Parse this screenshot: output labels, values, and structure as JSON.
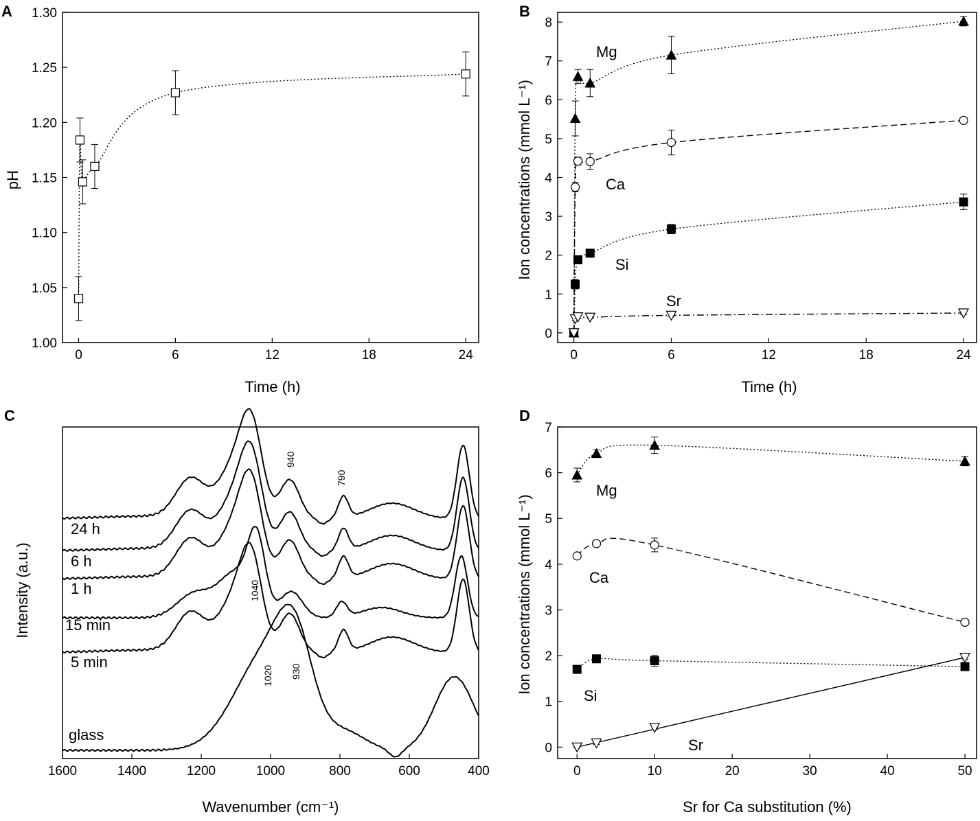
{
  "chart_data": [
    {
      "panel": "A",
      "type": "scatter",
      "xlabel": "Time (h)",
      "ylabel": "pH",
      "xlim": [
        -1,
        24.8
      ],
      "ylim": [
        1.0,
        1.3
      ],
      "xticks": [
        0,
        6,
        12,
        18,
        24
      ],
      "yticks": [
        "1.00",
        "1.05",
        "1.10",
        "1.15",
        "1.20",
        "1.25",
        "1.30"
      ],
      "series": [
        {
          "name": "pH",
          "marker": "square-open",
          "line": "dotted",
          "points": [
            {
              "x": 0.0,
              "y": 1.04,
              "err": 0.02
            },
            {
              "x": 0.083,
              "y": 1.184,
              "err": 0.02
            },
            {
              "x": 0.25,
              "y": 1.146,
              "err": 0.02
            },
            {
              "x": 1.0,
              "y": 1.16,
              "err": 0.02
            },
            {
              "x": 6.0,
              "y": 1.227,
              "err": 0.02
            },
            {
              "x": 24.0,
              "y": 1.244,
              "err": 0.02
            }
          ]
        }
      ]
    },
    {
      "panel": "B",
      "type": "scatter",
      "xlabel": "Time (h)",
      "ylabel": "Ion concentrations (mmol L⁻¹)",
      "xlim": [
        -1,
        24.8
      ],
      "ylim": [
        -0.25,
        8.25
      ],
      "xticks": [
        0,
        6,
        12,
        18,
        24
      ],
      "yticks": [
        0,
        1,
        2,
        3,
        4,
        5,
        6,
        7,
        8
      ],
      "annotations": [
        "Mg",
        "Ca",
        "Si",
        "Sr"
      ],
      "series": [
        {
          "name": "Mg",
          "marker": "triangle-filled",
          "line": "dotted",
          "points": [
            {
              "x": 0,
              "y": 0,
              "err": 0
            },
            {
              "x": 0.083,
              "y": 5.52,
              "err": 0.45
            },
            {
              "x": 0.25,
              "y": 6.6,
              "err": 0.18
            },
            {
              "x": 1.0,
              "y": 6.43,
              "err": 0.35
            },
            {
              "x": 6.0,
              "y": 7.15,
              "err": 0.48
            },
            {
              "x": 24.0,
              "y": 8.02,
              "err": 0.12
            }
          ]
        },
        {
          "name": "Ca",
          "marker": "circle-open",
          "line": "dashed",
          "points": [
            {
              "x": 0,
              "y": 0,
              "err": 0
            },
            {
              "x": 0.083,
              "y": 3.75,
              "err": 0.12
            },
            {
              "x": 0.25,
              "y": 4.42,
              "err": 0.1
            },
            {
              "x": 1.0,
              "y": 4.41,
              "err": 0.2
            },
            {
              "x": 6.0,
              "y": 4.9,
              "err": 0.32
            },
            {
              "x": 24.0,
              "y": 5.47,
              "err": 0.05
            }
          ]
        },
        {
          "name": "Si",
          "marker": "square-filled",
          "line": "dotted",
          "points": [
            {
              "x": 0,
              "y": 0,
              "err": 0
            },
            {
              "x": 0.083,
              "y": 1.25,
              "err": 0.12
            },
            {
              "x": 0.25,
              "y": 1.88,
              "err": 0.1
            },
            {
              "x": 1.0,
              "y": 2.05,
              "err": 0.05
            },
            {
              "x": 6.0,
              "y": 2.67,
              "err": 0.12
            },
            {
              "x": 24.0,
              "y": 3.37,
              "err": 0.2
            }
          ]
        },
        {
          "name": "Sr",
          "marker": "triangle-down-open",
          "line": "dashdot",
          "points": [
            {
              "x": 0,
              "y": 0,
              "err": 0
            },
            {
              "x": 0.083,
              "y": 0.36,
              "err": 0.04
            },
            {
              "x": 0.25,
              "y": 0.41,
              "err": 0.04
            },
            {
              "x": 1.0,
              "y": 0.4,
              "err": 0.04
            },
            {
              "x": 6.0,
              "y": 0.45,
              "err": 0.04
            },
            {
              "x": 24.0,
              "y": 0.51,
              "err": 0.04
            }
          ]
        }
      ]
    },
    {
      "panel": "C",
      "type": "line",
      "xlabel": "Wavenumber (cm⁻¹)",
      "ylabel": "Intensity (a.u.)",
      "xlim": [
        1600,
        400
      ],
      "xticks": [
        1600,
        1400,
        1200,
        1000,
        800,
        600,
        400
      ],
      "series_labels": [
        "24 h",
        "6 h",
        "1 h",
        "15 min",
        "5 min",
        "glass"
      ],
      "peak_labels": [
        "940",
        "790",
        "1040",
        "1020",
        "930"
      ]
    },
    {
      "panel": "D",
      "type": "scatter",
      "xlabel": "Sr for Ca substitution (%)",
      "ylabel": "Ion concentrations (mmol L⁻¹)",
      "xlim": [
        -2.5,
        51.5
      ],
      "ylim": [
        -0.25,
        7.0
      ],
      "xticks": [
        0,
        10,
        20,
        30,
        40,
        50
      ],
      "yticks": [
        0,
        1,
        2,
        3,
        4,
        5,
        6,
        7
      ],
      "annotations": [
        "Mg",
        "Ca",
        "Si",
        "Sr"
      ],
      "series": [
        {
          "name": "Mg",
          "marker": "triangle-filled",
          "line": "dotted",
          "points": [
            {
              "x": 0,
              "y": 5.95,
              "err": 0.15
            },
            {
              "x": 2.5,
              "y": 6.42,
              "err": 0.08
            },
            {
              "x": 10,
              "y": 6.6,
              "err": 0.18
            },
            {
              "x": 50,
              "y": 6.25,
              "err": 0.1
            }
          ]
        },
        {
          "name": "Ca",
          "marker": "circle-open",
          "line": "dashed",
          "points": [
            {
              "x": 0,
              "y": 4.18,
              "err": 0.05
            },
            {
              "x": 2.5,
              "y": 4.45,
              "err": 0.05
            },
            {
              "x": 10,
              "y": 4.42,
              "err": 0.15
            },
            {
              "x": 50,
              "y": 2.73,
              "err": 0.05
            }
          ]
        },
        {
          "name": "Si",
          "marker": "square-filled",
          "line": "dotted",
          "points": [
            {
              "x": 0,
              "y": 1.7,
              "err": 0.03
            },
            {
              "x": 2.5,
              "y": 1.93,
              "err": 0.05
            },
            {
              "x": 10,
              "y": 1.89,
              "err": 0.12
            },
            {
              "x": 50,
              "y": 1.76,
              "err": 0.05
            }
          ]
        },
        {
          "name": "Sr",
          "marker": "triangle-down-open",
          "line": "solid",
          "points": [
            {
              "x": 0,
              "y": 0.0,
              "err": 0.02
            },
            {
              "x": 2.5,
              "y": 0.09,
              "err": 0.03
            },
            {
              "x": 10,
              "y": 0.43,
              "err": 0.05
            },
            {
              "x": 50,
              "y": 1.96,
              "err": 0.05
            }
          ]
        }
      ]
    }
  ]
}
